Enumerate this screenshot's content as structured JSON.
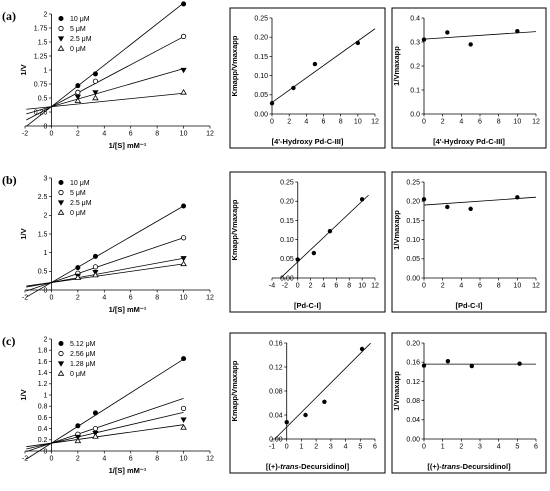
{
  "panels": [
    {
      "label": "(a)",
      "lb": {
        "type": "line",
        "xlabel": "1/[S] mM⁻¹",
        "ylabel": "1/V",
        "xlim": [
          -2,
          12
        ],
        "ylim": [
          0,
          2.0
        ],
        "xticks": [
          -2,
          0,
          2,
          4,
          6,
          8,
          10,
          12
        ],
        "yticks": [
          0,
          0.25,
          0.5,
          0.75,
          1.0,
          1.25,
          1.5,
          1.75,
          2.0
        ],
        "ytick_labels": [
          "0",
          "0.25",
          "0.5",
          "0.75",
          "1",
          "1.25",
          "1.5",
          "1.75",
          "2"
        ],
        "x": [
          2,
          3.33,
          10
        ],
        "series": [
          {
            "name": "10 μM",
            "marker": "filled-circle",
            "values": [
              0.72,
              0.93,
              2.18
            ],
            "line": [
              0.345,
              0.185
            ]
          },
          {
            "name": "5 μM",
            "marker": "open-circle",
            "values": [
              0.6,
              0.8,
              1.6
            ],
            "line": [
              0.345,
              0.125
            ]
          },
          {
            "name": "2.5 μM",
            "marker": "filled-triangle",
            "values": [
              0.52,
              0.6,
              1.0
            ],
            "line": [
              0.345,
              0.068
            ]
          },
          {
            "name": "0 μM",
            "marker": "open-triangle",
            "values": [
              0.45,
              0.5,
              0.6
            ],
            "line": [
              0.345,
              0.024
            ]
          }
        ]
      },
      "s1": {
        "type": "scatter",
        "xlabel": "[4'-Hydroxy Pd-C-III]",
        "ylabel": "Kmapp/Vmaxapp",
        "xlim": [
          0,
          12
        ],
        "ylim": [
          0,
          0.25
        ],
        "xticks": [
          0,
          2,
          4,
          6,
          8,
          10,
          12
        ],
        "yticks": [
          0,
          0.05,
          0.1,
          0.15,
          0.2,
          0.25
        ],
        "ytick_labels": [
          "0.00",
          "0.05",
          "0.10",
          "0.15",
          "0.20",
          "0.25"
        ],
        "x": [
          0,
          2.5,
          5,
          10
        ],
        "y": [
          0.028,
          0.068,
          0.13,
          0.185
        ],
        "line": [
          0.03,
          0.016
        ],
        "line_x": [
          -0.2,
          12
        ]
      },
      "s2": {
        "type": "scatter",
        "xlabel": "[4'-Hydroxy Pd-C-III]",
        "ylabel": "1/Vmaxapp",
        "xlim": [
          0,
          12
        ],
        "ylim": [
          0,
          0.4
        ],
        "xticks": [
          0,
          2,
          4,
          6,
          8,
          10,
          12
        ],
        "yticks": [
          0,
          0.1,
          0.2,
          0.3,
          0.4
        ],
        "ytick_labels": [
          "0.0",
          "0.1",
          "0.2",
          "0.3",
          "0.4"
        ],
        "x": [
          0,
          2.5,
          5,
          10
        ],
        "y": [
          0.31,
          0.34,
          0.29,
          0.345
        ],
        "line": [
          0.312,
          0.0026
        ],
        "line_x": [
          0,
          12
        ]
      }
    },
    {
      "label": "(b)",
      "lb": {
        "type": "line",
        "xlabel": "1/[S] mM⁻¹",
        "ylabel": "1/V",
        "xlim": [
          -2,
          12
        ],
        "ylim": [
          0,
          3.0
        ],
        "xticks": [
          -2,
          0,
          2,
          4,
          6,
          8,
          10,
          12
        ],
        "yticks": [
          0,
          0.5,
          1.0,
          1.5,
          2.0,
          2.5,
          3.0
        ],
        "ytick_labels": [
          "0",
          "0.5",
          "1",
          "1.5",
          "2",
          "2.5",
          "3"
        ],
        "x": [
          2,
          3.33,
          10
        ],
        "series": [
          {
            "name": "10 μM",
            "marker": "filled-circle",
            "values": [
              0.6,
              0.9,
              2.25
            ],
            "line": [
              0.2,
              0.205
            ]
          },
          {
            "name": "5 μM",
            "marker": "open-circle",
            "values": [
              0.45,
              0.62,
              1.4
            ],
            "line": [
              0.2,
              0.12
            ]
          },
          {
            "name": "2.5 μM",
            "marker": "filled-triangle",
            "values": [
              0.38,
              0.48,
              0.85
            ],
            "line": [
              0.2,
              0.065
            ]
          },
          {
            "name": "0 μM",
            "marker": "open-triangle",
            "values": [
              0.33,
              0.4,
              0.7
            ],
            "line": [
              0.2,
              0.05
            ]
          }
        ]
      },
      "s1": {
        "type": "scatter",
        "xlabel": "[Pd-C-I]",
        "ylabel": "Kmapp/Vmaxapp",
        "xlim": [
          -4,
          12
        ],
        "ylim": [
          0,
          0.25
        ],
        "xticks": [
          -4,
          -2,
          0,
          2,
          4,
          6,
          8,
          10,
          12
        ],
        "yticks": [
          0,
          0.05,
          0.1,
          0.15,
          0.2,
          0.25
        ],
        "ytick_labels": [
          "0.00",
          "0.05",
          "0.10",
          "0.15",
          "0.20",
          "0.25"
        ],
        "x": [
          0,
          2.5,
          5,
          10
        ],
        "y": [
          0.048,
          0.065,
          0.122,
          0.205
        ],
        "line": [
          0.042,
          0.0158
        ],
        "line_x": [
          -2.65,
          11
        ]
      },
      "s2": {
        "type": "scatter",
        "xlabel": "[Pd-C-I]",
        "ylabel": "1/Vmaxapp",
        "xlim": [
          0,
          12
        ],
        "ylim": [
          0,
          0.25
        ],
        "xticks": [
          0,
          2,
          4,
          6,
          8,
          10,
          12
        ],
        "yticks": [
          0,
          0.05,
          0.1,
          0.15,
          0.2,
          0.25
        ],
        "ytick_labels": [
          "0.00",
          "0.05",
          "0.10",
          "0.15",
          "0.20",
          "0.25"
        ],
        "x": [
          0,
          2.5,
          5,
          10
        ],
        "y": [
          0.205,
          0.185,
          0.18,
          0.21
        ],
        "line": [
          0.19,
          0.0017
        ],
        "line_x": [
          0,
          12
        ]
      }
    },
    {
      "label": "(c)",
      "lb": {
        "type": "line",
        "xlabel": "1/[S] mM⁻¹",
        "ylabel": "1/V",
        "xlim": [
          -2,
          12
        ],
        "ylim": [
          0,
          2.0
        ],
        "xticks": [
          -2,
          0,
          2,
          4,
          6,
          8,
          10,
          12
        ],
        "yticks": [
          0,
          0.2,
          0.4,
          0.6,
          0.8,
          1.0,
          1.2,
          1.4,
          1.6,
          1.8,
          2.0
        ],
        "ytick_labels": [
          "0",
          "0.2",
          "0.4",
          "0.6",
          "0.8",
          "1",
          "1.2",
          "1.4",
          "1.6",
          "1.8",
          "2"
        ],
        "x": [
          2,
          3.33,
          10
        ],
        "series": [
          {
            "name": "5.12 μM",
            "marker": "filled-circle",
            "values": [
              0.45,
              0.68,
              1.65
            ],
            "line": [
              0.14,
              0.15
            ]
          },
          {
            "name": "2.56 μM",
            "marker": "open-circle",
            "values": [
              0.3,
              0.4,
              0.76
            ],
            "line": [
              0.14,
              0.08
            ]
          },
          {
            "name": "1.28 μM",
            "marker": "filled-triangle",
            "values": [
              0.25,
              0.32,
              0.56
            ],
            "line": [
              0.14,
              0.055
            ]
          },
          {
            "name": "0 μM",
            "marker": "open-triangle",
            "values": [
              0.18,
              0.26,
              0.42
            ],
            "line": [
              0.14,
              0.033
            ]
          }
        ]
      },
      "s1": {
        "type": "scatter",
        "xlabel": "[(+)-trans-Decursidinol]",
        "ylabel": "Kmapp/Vmaxapp",
        "xlim": [
          -1,
          6
        ],
        "ylim": [
          0,
          0.16
        ],
        "xticks": [
          -1,
          0,
          1,
          2,
          3,
          4,
          5,
          6
        ],
        "yticks": [
          0,
          0.04,
          0.08,
          0.12,
          0.16
        ],
        "ytick_labels": [
          "0.00",
          "0.04",
          "0.08",
          "0.12",
          "0.16"
        ],
        "x": [
          0,
          1.28,
          2.56,
          5.12
        ],
        "y": [
          0.028,
          0.04,
          0.062,
          0.15
        ],
        "line": [
          0.02,
          0.0245
        ],
        "line_x": [
          -0.8,
          5.7
        ]
      },
      "s2": {
        "type": "scatter",
        "xlabel": "[(+)-trans-Decursidinol]",
        "ylabel": "1/Vmaxapp",
        "xlim": [
          0,
          6
        ],
        "ylim": [
          0,
          0.2
        ],
        "xticks": [
          0,
          1,
          2,
          3,
          4,
          5,
          6
        ],
        "yticks": [
          0,
          0.04,
          0.08,
          0.12,
          0.16,
          0.2
        ],
        "ytick_labels": [
          "0.00",
          "0.04",
          "0.08",
          "0.12",
          "0.16",
          "0.20"
        ],
        "x": [
          0,
          1.28,
          2.56,
          5.12
        ],
        "y": [
          0.153,
          0.162,
          0.152,
          0.157
        ],
        "line": [
          0.156,
          0
        ],
        "line_x": [
          0,
          6
        ]
      }
    }
  ]
}
